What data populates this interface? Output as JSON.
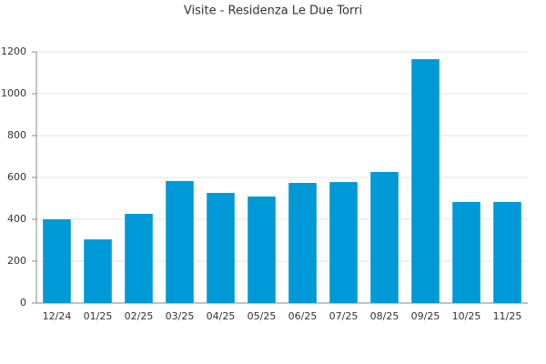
{
  "chart_data": {
    "type": "bar",
    "title": "Visite - Residenza Le Due Torri",
    "categories": [
      "12/24",
      "01/25",
      "02/25",
      "03/25",
      "04/25",
      "05/25",
      "06/25",
      "07/25",
      "08/25",
      "09/25",
      "10/25",
      "11/25"
    ],
    "values": [
      400,
      304,
      426,
      583,
      526,
      509,
      574,
      578,
      626,
      1165,
      483,
      483
    ],
    "color": "#0099d8",
    "ylim": [
      0,
      1200
    ],
    "yticks": [
      0,
      200,
      400,
      600,
      800,
      1000,
      1200
    ],
    "grid": true
  }
}
